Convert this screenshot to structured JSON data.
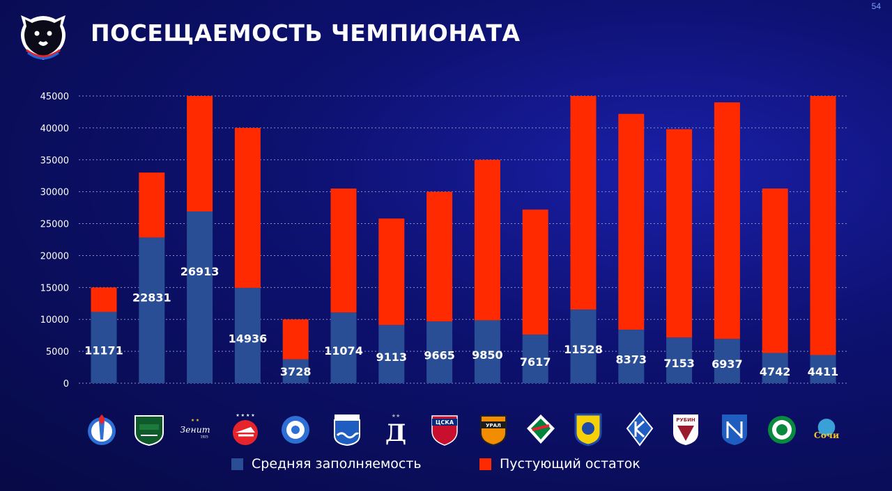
{
  "page_number": "54",
  "title": "ПОСЕЩАЕМОСТЬ ЧЕМПИОНАТА",
  "colors": {
    "attendance": "#2a4e96",
    "empty": "#ff2a00",
    "grid": "#8b90c8"
  },
  "legend": {
    "attendance_label": "Средняя заполняемость",
    "empty_label": "Пустующий остаток"
  },
  "clubs": [
    {
      "icon": "fakel-logo-icon"
    },
    {
      "icon": "krasnodar-logo-icon"
    },
    {
      "icon": "zenit-logo-icon"
    },
    {
      "icon": "spartak-logo-icon"
    },
    {
      "icon": "orenburg-logo-icon"
    },
    {
      "icon": "baltika-logo-icon"
    },
    {
      "icon": "dynamo-logo-icon"
    },
    {
      "icon": "cska-logo-icon"
    },
    {
      "icon": "ural-logo-icon"
    },
    {
      "icon": "lokomotiv-logo-icon"
    },
    {
      "icon": "rostov-logo-icon"
    },
    {
      "icon": "krylia-sovetov-logo-icon"
    },
    {
      "icon": "rubin-logo-icon"
    },
    {
      "icon": "pari-nn-logo-icon"
    },
    {
      "icon": "akhmat-logo-icon"
    },
    {
      "icon": "sochi-logo-icon"
    }
  ],
  "chart_data": {
    "type": "bar",
    "stacked": true,
    "ylim": [
      0,
      45000
    ],
    "yticks": [
      "0",
      "5000",
      "10000",
      "15000",
      "20000",
      "25000",
      "30000",
      "35000",
      "40000",
      "45000"
    ],
    "grid": true,
    "legend_position": "bottom",
    "series": [
      {
        "name": "Средняя заполняемость",
        "values": [
          11171,
          22831,
          26913,
          14936,
          3728,
          11074,
          9113,
          9665,
          9850,
          7617,
          11528,
          8373,
          7153,
          6937,
          4742,
          4411
        ]
      },
      {
        "name": "Пустующий остаток",
        "values": [
          3829,
          10169,
          18087,
          25064,
          6272,
          19426,
          16687,
          20335,
          25150,
          19583,
          33472,
          33827,
          32647,
          37063,
          25758,
          40589
        ]
      }
    ],
    "data_labels": [
      "11171",
      "22831",
      "26913",
      "14936",
      "3728",
      "11074",
      "9113",
      "9665",
      "9850",
      "7617",
      "11528",
      "8373",
      "7153",
      "6937",
      "4742",
      "4411"
    ]
  }
}
